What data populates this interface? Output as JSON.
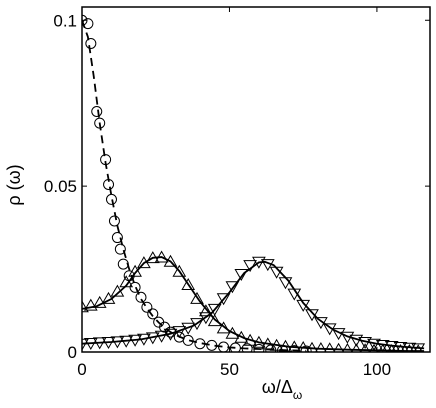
{
  "chart_data": {
    "type": "scatter",
    "title": "",
    "xlabel": "ω/Δ",
    "xlabel_subscript": "ω",
    "ylabel": "ρ  (ω)",
    "xlim": [
      0,
      118
    ],
    "ylim": [
      0,
      0.104
    ],
    "grid": false,
    "x_ticks": [
      0,
      50,
      100
    ],
    "x_tick_labels": [
      "0",
      "50",
      "100"
    ],
    "y_ticks": [
      0,
      0.05,
      0.1
    ],
    "y_tick_labels": [
      "0",
      "0.05",
      "0.1"
    ],
    "series": [
      {
        "marker": "circle",
        "line": "dashed",
        "x": [
          0,
          2,
          3,
          5,
          6,
          8,
          9,
          10,
          11,
          12,
          13,
          14,
          16,
          18,
          20,
          22,
          24,
          26,
          28,
          30,
          33,
          36,
          40,
          44,
          48,
          52,
          56,
          60,
          64,
          68,
          72,
          76
        ],
        "y": [
          0.1,
          0.099,
          0.093,
          0.0725,
          0.069,
          0.058,
          0.0505,
          0.046,
          0.0395,
          0.0345,
          0.031,
          0.0265,
          0.023,
          0.0195,
          0.0165,
          0.0135,
          0.0115,
          0.009,
          0.0075,
          0.006,
          0.0045,
          0.0035,
          0.0025,
          0.002,
          0.0015,
          0.0012,
          0.001,
          0.0008,
          0.0006,
          0.0005,
          0.0004,
          0.0003
        ],
        "fit_x": [
          0,
          2,
          4,
          6,
          8,
          10,
          12,
          14,
          16,
          18,
          20,
          22,
          24,
          26,
          28,
          30,
          33,
          36,
          40,
          45,
          50,
          55,
          60,
          65,
          70,
          76
        ],
        "fit_y": [
          0.1,
          0.095,
          0.083,
          0.069,
          0.057,
          0.047,
          0.038,
          0.031,
          0.025,
          0.02,
          0.016,
          0.0132,
          0.0108,
          0.0089,
          0.0073,
          0.006,
          0.0046,
          0.0036,
          0.0027,
          0.0019,
          0.0014,
          0.0011,
          0.0009,
          0.0007,
          0.0005,
          0.0004
        ]
      },
      {
        "marker": "triangle-up",
        "line": "solid",
        "x": [
          0,
          3,
          6,
          9,
          12,
          15,
          18,
          21,
          24,
          27,
          30,
          33,
          36,
          39,
          42,
          45,
          48,
          51,
          54,
          57,
          60,
          63,
          66,
          69,
          72,
          75,
          78,
          81,
          84,
          87,
          90,
          93,
          96,
          99,
          102,
          105,
          108,
          111,
          114
        ],
        "y": [
          0.0135,
          0.014,
          0.0148,
          0.016,
          0.0182,
          0.021,
          0.0242,
          0.0268,
          0.0283,
          0.0285,
          0.0272,
          0.0242,
          0.0202,
          0.016,
          0.0123,
          0.0093,
          0.0071,
          0.0055,
          0.0043,
          0.0034,
          0.0028,
          0.0023,
          0.0019,
          0.0016,
          0.0014,
          0.0012,
          0.001,
          0.0009,
          0.0008,
          0.0007,
          0.0006,
          0.0005,
          0.0005,
          0.0004,
          0.0004,
          0.0003,
          0.0003,
          0.0003,
          0.0002
        ],
        "fit_x": [
          0,
          5,
          10,
          15,
          18,
          21,
          24,
          27,
          30,
          33,
          36,
          40,
          45,
          50,
          55,
          60,
          70,
          80,
          90,
          100,
          110,
          116
        ],
        "fit_y": [
          0.013,
          0.0138,
          0.016,
          0.02,
          0.0238,
          0.0268,
          0.0284,
          0.0286,
          0.0273,
          0.0244,
          0.0204,
          0.0152,
          0.0098,
          0.0063,
          0.0042,
          0.0029,
          0.0016,
          0.001,
          0.0007,
          0.0005,
          0.0003,
          0.0003
        ]
      },
      {
        "marker": "triangle-down",
        "line": "solid",
        "x": [
          0,
          3,
          6,
          9,
          12,
          15,
          18,
          21,
          24,
          27,
          30,
          33,
          36,
          39,
          42,
          45,
          48,
          51,
          54,
          57,
          60,
          63,
          66,
          69,
          72,
          75,
          78,
          81,
          84,
          87,
          90,
          93,
          96,
          99,
          102,
          105,
          108,
          111,
          114
        ],
        "y": [
          0.0025,
          0.0027,
          0.0029,
          0.003,
          0.0032,
          0.0034,
          0.0037,
          0.004,
          0.0044,
          0.0049,
          0.0055,
          0.0063,
          0.0073,
          0.0087,
          0.0105,
          0.013,
          0.0162,
          0.0198,
          0.0235,
          0.0262,
          0.0272,
          0.0265,
          0.0242,
          0.021,
          0.0176,
          0.0142,
          0.0114,
          0.009,
          0.0071,
          0.0057,
          0.0046,
          0.0037,
          0.003,
          0.0025,
          0.0021,
          0.0018,
          0.0015,
          0.0013,
          0.0011
        ],
        "fit_x": [
          0,
          10,
          20,
          30,
          38,
          44,
          50,
          55,
          60,
          62,
          65,
          70,
          75,
          80,
          85,
          90,
          95,
          100,
          105,
          110,
          116
        ],
        "fit_y": [
          0.0025,
          0.003,
          0.0038,
          0.0055,
          0.008,
          0.0118,
          0.018,
          0.0238,
          0.027,
          0.0272,
          0.0262,
          0.0215,
          0.0148,
          0.01,
          0.0068,
          0.0047,
          0.0034,
          0.0025,
          0.0019,
          0.0015,
          0.0011
        ]
      }
    ]
  }
}
